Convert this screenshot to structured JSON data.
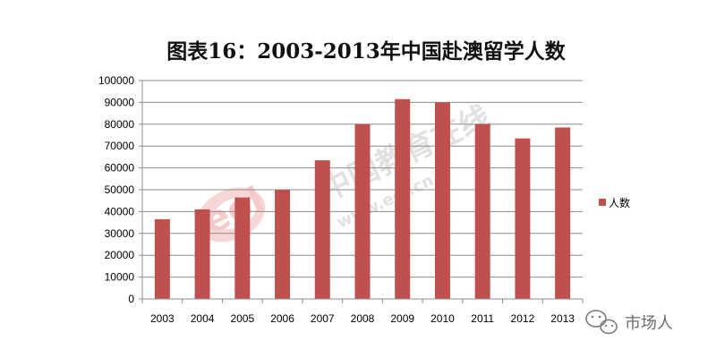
{
  "chart_data": {
    "type": "bar",
    "title": "图表16：2003-2013年中国赴澳留学人数",
    "categories": [
      "2003",
      "2004",
      "2005",
      "2006",
      "2007",
      "2008",
      "2009",
      "2010",
      "2011",
      "2012",
      "2013"
    ],
    "series": [
      {
        "name": "人数",
        "values": [
          36500,
          41000,
          46500,
          50000,
          63500,
          80000,
          91500,
          90000,
          80000,
          73500,
          78500
        ]
      }
    ],
    "ylim": [
      0,
      100000
    ],
    "yticks": [
      0,
      10000,
      20000,
      30000,
      40000,
      50000,
      60000,
      70000,
      80000,
      90000,
      100000
    ],
    "grid": true,
    "legend_position": "right",
    "bar_color": "#c0504d"
  },
  "watermark": {
    "text": "中国教育在线",
    "url": "www.eol.cn",
    "logo": "eol"
  },
  "wechat": {
    "label": "市场人",
    "icon": "wechat-icon"
  }
}
